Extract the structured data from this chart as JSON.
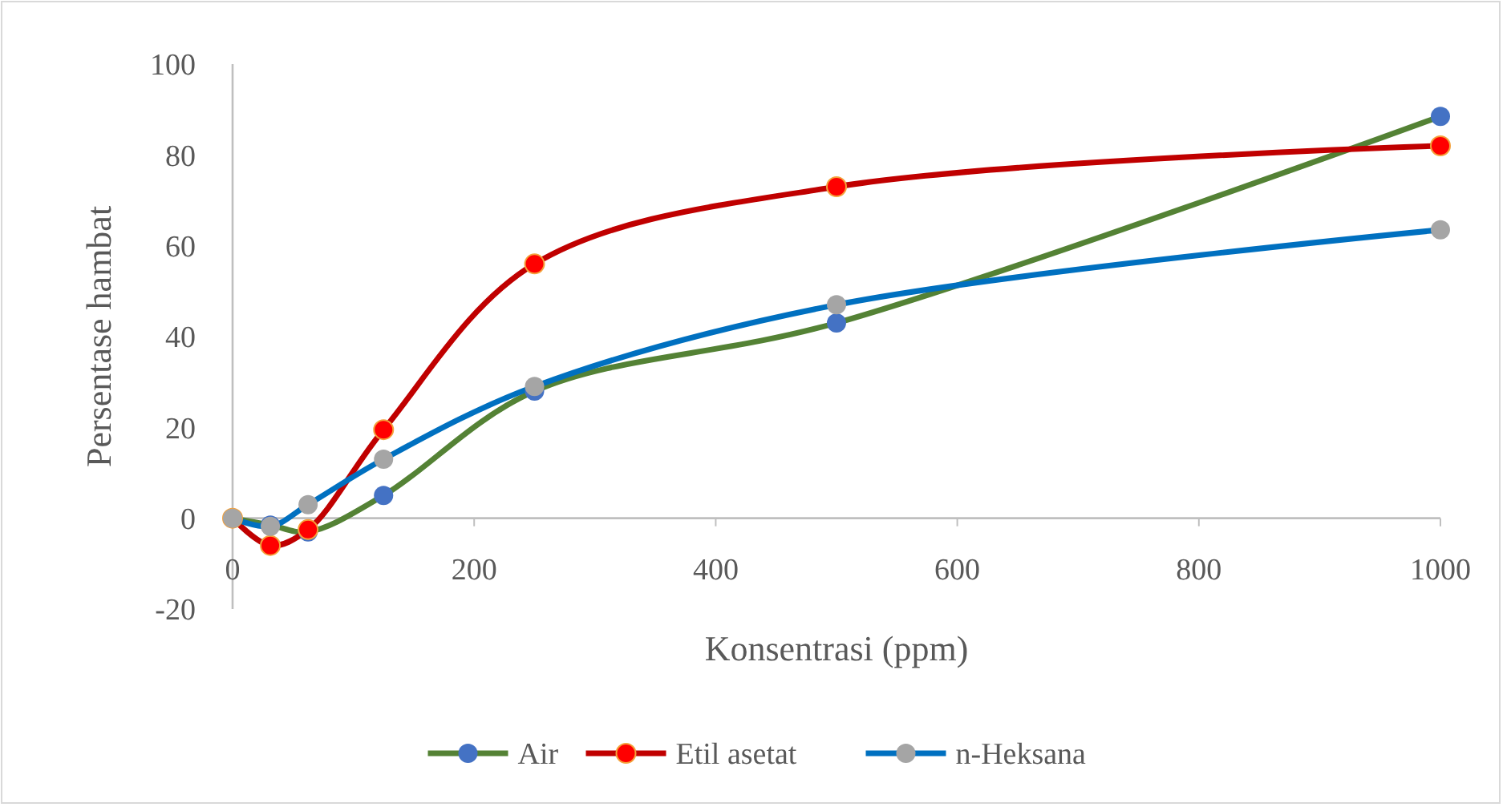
{
  "chart_data": {
    "type": "line",
    "xlabel": "Konsentrasi (ppm)",
    "ylabel": "Persentase hambat",
    "x": [
      0,
      31.25,
      62.5,
      125,
      250,
      500,
      1000
    ],
    "xlim": [
      0,
      1000
    ],
    "xticks": [
      0,
      200,
      400,
      600,
      800,
      1000
    ],
    "ylim": [
      -20,
      100
    ],
    "yticks": [
      -20,
      0,
      20,
      40,
      60,
      80,
      100
    ],
    "grid": false,
    "legend": "bottom",
    "marker": "circle",
    "line_style": "solid",
    "series": [
      {
        "name": "Air",
        "color": "#548235",
        "colors": [
          "#4472c4",
          "#4472c4",
          "#4472c4",
          "#4472c4",
          "#4472c4",
          "#4472c4",
          "#4472c4"
        ],
        "values": [
          0,
          -1.5,
          -3,
          5,
          28,
          43,
          88.5
        ]
      },
      {
        "name": "Etil asetat",
        "color": "#c00000",
        "colors": [
          "#ff0000",
          "#ff0000",
          "#ff0000",
          "#ff0000",
          "#ff0000",
          "#ff0000",
          "#ff0000"
        ],
        "values": [
          0,
          -6,
          -2.5,
          19.5,
          56,
          73,
          82
        ]
      },
      {
        "name": "n-Heksana",
        "color": "#0070c0",
        "colors": [
          "#a5a5a5",
          "#a5a5a5",
          "#a5a5a5",
          "#a5a5a5",
          "#a5a5a5",
          "#a5a5a5",
          "#a5a5a5"
        ],
        "values": [
          0,
          -1.8,
          3,
          13,
          29,
          47,
          63.5
        ]
      }
    ]
  }
}
